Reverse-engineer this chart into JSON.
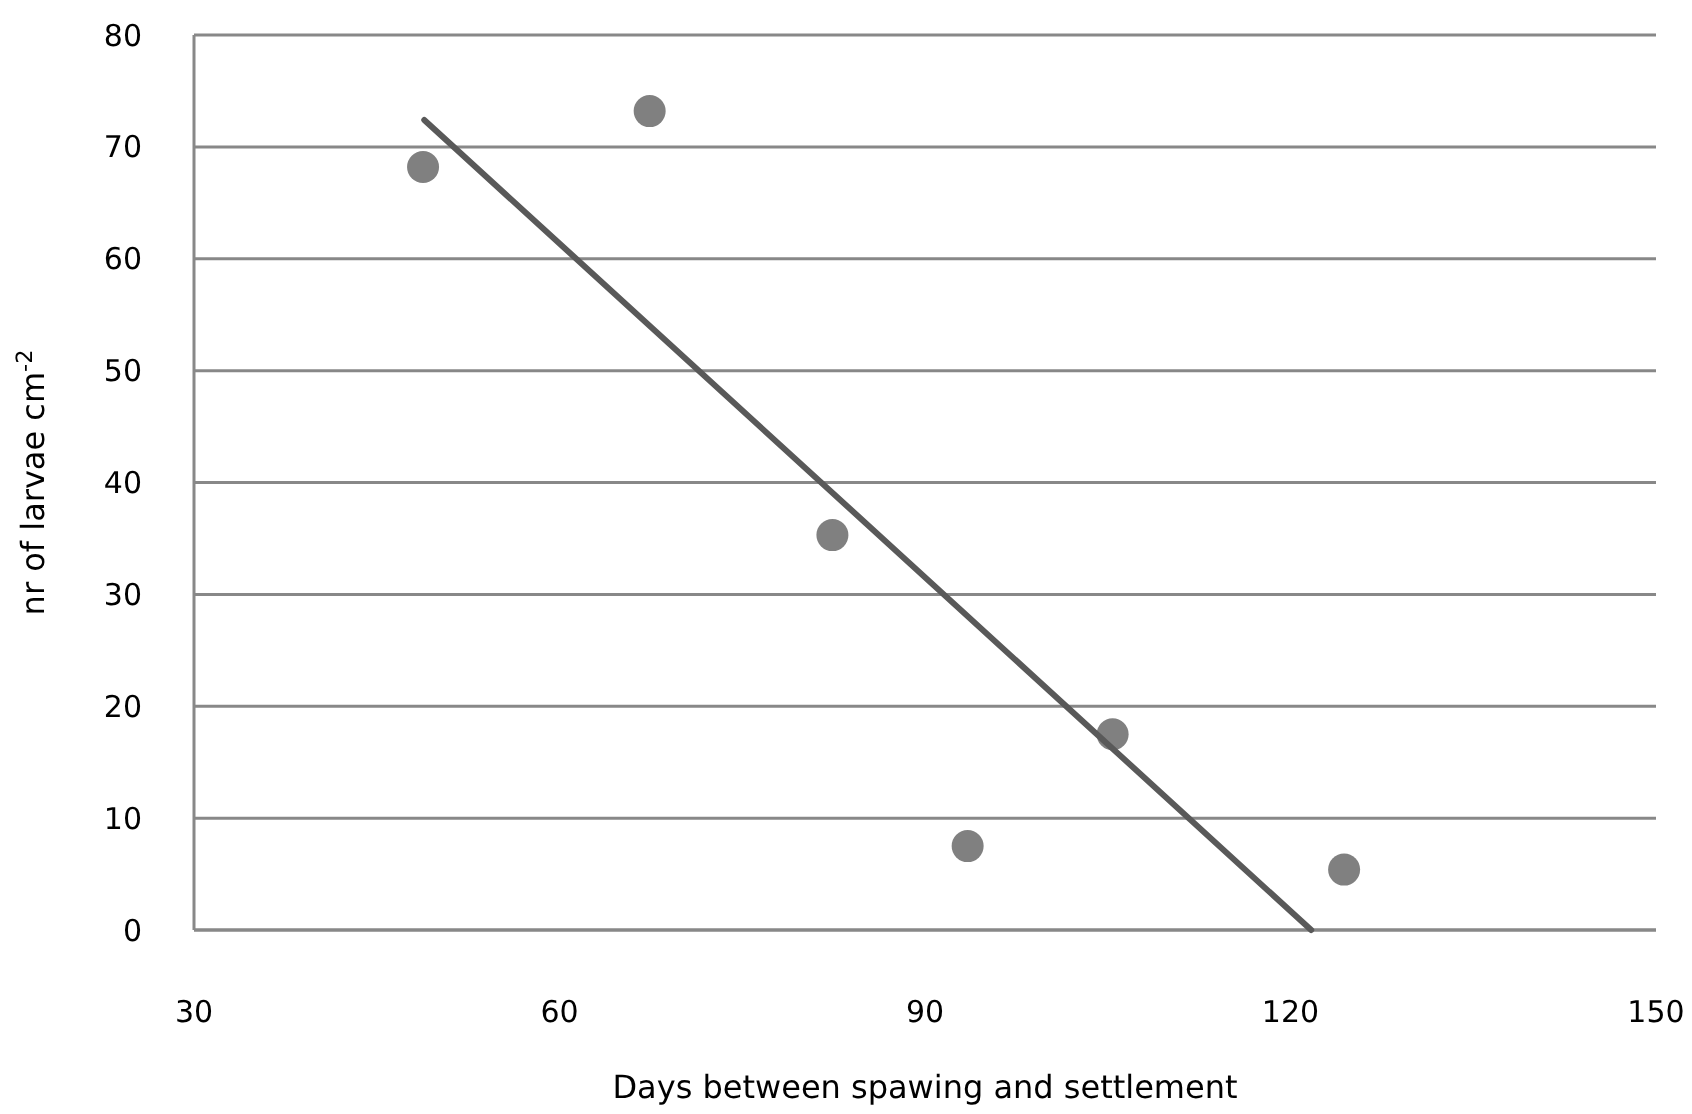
{
  "chart_data": {
    "type": "scatter",
    "xlabel": "Days between spawing and settlement",
    "ylabel": "nr of larvae cm$^{-2}$",
    "xlim": [
      30,
      150
    ],
    "xticks": [
      30,
      60,
      90,
      120,
      150
    ],
    "ylim": [
      0,
      80
    ],
    "yticks": [
      0,
      10,
      20,
      30,
      40,
      50,
      60,
      70,
      80
    ],
    "grid": "y",
    "marker": "circle",
    "series": [
      {
        "color": "#808080",
        "x": [
          48.8,
          67.4,
          82.4,
          93.5,
          105.4,
          124.4
        ],
        "values": [
          68.2,
          73.2,
          35.3,
          7.5,
          17.5,
          5.4
        ]
      },
      {
        "type": "line",
        "color": "#595959",
        "marker": "none",
        "line_style": "solid",
        "x": [
          48.9,
          121.7
        ],
        "values": [
          72.4,
          0
        ]
      }
    ]
  }
}
